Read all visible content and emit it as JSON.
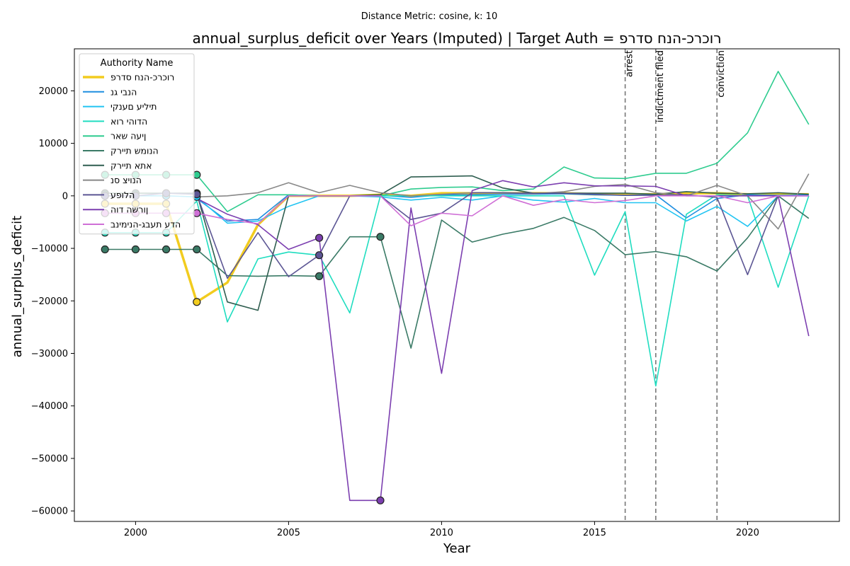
{
  "chart_data": {
    "type": "line",
    "suptitle": "Distance Metric: cosine, k: 10",
    "title": "annual_surplus_deficit over Years (Imputed) | Target Auth = רוכרכ-הנח סדרפ",
    "xlabel": "Year",
    "ylabel": "annual_surplus_deficit",
    "xlim": [
      1998,
      2023
    ],
    "ylim": [
      -62000,
      28000
    ],
    "x_ticks": [
      2000,
      2005,
      2010,
      2015,
      2020
    ],
    "y_ticks": [
      20000,
      10000,
      0,
      -10000,
      -20000,
      -30000,
      -40000,
      -50000,
      -60000
    ],
    "x_tick_labels": [
      "2000",
      "2005",
      "2010",
      "2015",
      "2020"
    ],
    "y_tick_labels": [
      "20000",
      "10000",
      "0",
      "−10000",
      "−20000",
      "−30000",
      "−40000",
      "−50000",
      "−60000"
    ],
    "legend": {
      "title": "Authority Name",
      "placement": "upper-left"
    },
    "x": [
      1999,
      2000,
      2001,
      2002,
      2003,
      2004,
      2005,
      2006,
      2007,
      2008,
      2009,
      2010,
      2011,
      2012,
      2013,
      2014,
      2015,
      2016,
      2017,
      2018,
      2019,
      2020,
      2021,
      2022
    ],
    "series": [
      {
        "name": "רוכרכ-הנח סדרפ",
        "color": "#f2cc1f",
        "width": 3.5,
        "imputed_years": [
          1999,
          2000,
          2001,
          2002
        ],
        "values": [
          -1500,
          -1500,
          -1500,
          -20200,
          -16500,
          -5500,
          0,
          0,
          0,
          200,
          0,
          500,
          500,
          500,
          500,
          500,
          300,
          300,
          300,
          500,
          500,
          300,
          300,
          300
        ]
      },
      {
        "name": "הנבי גנ",
        "color": "#1f8ee0",
        "width": 1.6,
        "imputed_years": [],
        "values": [
          null,
          null,
          null,
          -500,
          -4800,
          -4500,
          200,
          0,
          0,
          100,
          -300,
          200,
          200,
          300,
          300,
          400,
          200,
          100,
          200,
          -4200,
          -500,
          200,
          100,
          200
        ]
      },
      {
        "name": "תיליע םענקי",
        "color": "#22c4f2",
        "width": 1.6,
        "imputed_years": [
          1999,
          2000,
          2001,
          2002
        ],
        "values": [
          0,
          0,
          0,
          -200,
          -5200,
          -4800,
          -2000,
          0,
          0,
          -200,
          -800,
          -300,
          -800,
          0,
          -800,
          -1200,
          -500,
          -1300,
          -1300,
          -4800,
          -2000,
          -5800,
          0,
          0
        ]
      },
      {
        "name": "הדוהי רוא",
        "color": "#20ddc0",
        "width": 1.6,
        "imputed_years": [
          1999,
          2000,
          2001
        ],
        "values": [
          -7000,
          -7000,
          -7000,
          -1000,
          -24000,
          -12000,
          -10700,
          -11300,
          -22300,
          0,
          0,
          0,
          0,
          0,
          0,
          0,
          -15100,
          -3000,
          -36200,
          -3500,
          200,
          0,
          -17400,
          0
        ]
      },
      {
        "name": "ןיעה שאר",
        "color": "#2ecc8f",
        "width": 1.6,
        "imputed_years": [
          1999,
          2000,
          2001,
          2002
        ],
        "values": [
          4000,
          4000,
          4000,
          4000,
          -3000,
          200,
          200,
          0,
          0,
          0,
          1300,
          1600,
          1700,
          1000,
          1300,
          5500,
          3400,
          3300,
          4300,
          4300,
          6200,
          12000,
          23700,
          13600
        ]
      },
      {
        "name": "הנומש תיירק",
        "color": "#3a7a66",
        "width": 1.6,
        "imputed_years": [
          1999,
          2000,
          2001,
          2002,
          2006,
          2008
        ],
        "values": [
          -10200,
          -10200,
          -10200,
          -10200,
          -15200,
          -15300,
          -15200,
          -15300,
          -7800,
          -7800,
          -29000,
          -4600,
          -8800,
          -7300,
          -6200,
          -4100,
          -6600,
          -11200,
          -10600,
          -11600,
          -14300,
          -8000,
          0,
          -4300
        ]
      },
      {
        "name": "אתא תיירק",
        "color": "#2f5e50",
        "width": 1.6,
        "imputed_years": [
          1999,
          2000,
          2001,
          2002
        ],
        "values": [
          500,
          500,
          500,
          500,
          -20200,
          -21800,
          0,
          0,
          0,
          200,
          3600,
          3700,
          3800,
          1500,
          500,
          500,
          500,
          500,
          300,
          800,
          500,
          400,
          600,
          300
        ]
      },
      {
        "name": "הנויצ סנ",
        "color": "#888888",
        "width": 1.6,
        "imputed_years": [],
        "values": [
          null,
          null,
          null,
          -200,
          0,
          600,
          2500,
          600,
          2000,
          600,
          0,
          300,
          600,
          600,
          400,
          800,
          1800,
          2200,
          600,
          0,
          2000,
          0,
          -6300,
          4200
        ]
      },
      {
        "name": "הלופע",
        "color": "#5c5694",
        "width": 1.6,
        "imputed_years": [
          1999,
          2000,
          2001,
          2002,
          2006
        ],
        "values": [
          0,
          0,
          500,
          300,
          -15700,
          -7000,
          -15400,
          -11300,
          0,
          0,
          -4500,
          -3300,
          600,
          600,
          500,
          500,
          300,
          100,
          100,
          200,
          -300,
          -15000,
          0,
          0
        ]
      },
      {
        "name": "ןורשה דוה",
        "color": "#7c3fb0",
        "width": 1.6,
        "imputed_years": [
          2006,
          2008
        ],
        "values": [
          null,
          null,
          null,
          -500,
          -3500,
          -5500,
          -10200,
          -8000,
          -58000,
          -58000,
          -2300,
          -33800,
          1000,
          2900,
          1700,
          2500,
          1900,
          1900,
          1800,
          0,
          0,
          0,
          0,
          -26700
        ]
      },
      {
        "name": "הדע תעבג-הנימינב",
        "color": "#cf6fd6",
        "width": 1.6,
        "imputed_years": [
          1999,
          2000,
          2001,
          2002
        ],
        "values": [
          -3300,
          -3300,
          -3300,
          -3300,
          -4500,
          -5300,
          0,
          0,
          0,
          0,
          -5700,
          -3300,
          -3800,
          0,
          -1800,
          -700,
          -1300,
          -900,
          0,
          0,
          0,
          -1300,
          0,
          0
        ]
      }
    ],
    "events": [
      {
        "x": 2016,
        "label": "arrest"
      },
      {
        "x": 2017,
        "label": "indictment filed"
      },
      {
        "x": 2019,
        "label": "conviction"
      }
    ]
  }
}
